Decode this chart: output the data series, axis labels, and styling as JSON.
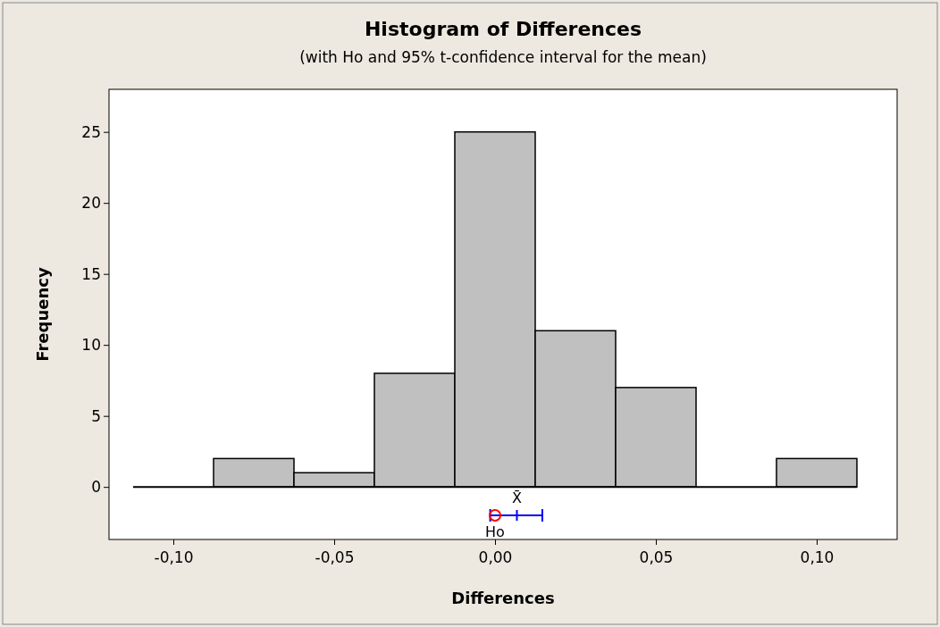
{
  "chart_data": {
    "type": "histogram",
    "title": "Histogram of Differences",
    "subtitle": "(with Ho and 95% t-confidence interval for the mean)",
    "xlabel": "Differences",
    "ylabel": "Frequency",
    "bins": [
      -0.1125,
      -0.0875,
      -0.0625,
      -0.0375,
      -0.0125,
      0.0125,
      0.0375,
      0.0625,
      0.0875,
      0.1125
    ],
    "values": [
      0,
      2,
      1,
      8,
      25,
      11,
      7,
      0,
      2
    ],
    "color": "#c0c0c0",
    "series": [
      {
        "type": "scatter",
        "name": "X̄",
        "x": [
          0.0068
        ],
        "values": [
          -2
        ],
        "xerrors": [
          [
            -0.0015,
            0.0147
          ]
        ],
        "color": "#0000ff",
        "marker": "cross"
      },
      {
        "type": "scatter",
        "name": "Ho",
        "x": [
          0
        ],
        "values": [
          -2
        ],
        "color": "#ff0000",
        "marker": "circle"
      }
    ],
    "xlim": [
      -0.12,
      0.125
    ],
    "ylim": [
      -3.7,
      28
    ],
    "xticks": [
      {
        "value": -0.1,
        "label": "-0,10"
      },
      {
        "value": -0.05,
        "label": "-0,05"
      },
      {
        "value": 0,
        "label": "0,00"
      },
      {
        "value": 0.05,
        "label": "0,05"
      },
      {
        "value": 0.1,
        "label": "0,10"
      }
    ],
    "yticks": [
      0,
      5,
      10,
      15,
      20,
      25
    ]
  }
}
